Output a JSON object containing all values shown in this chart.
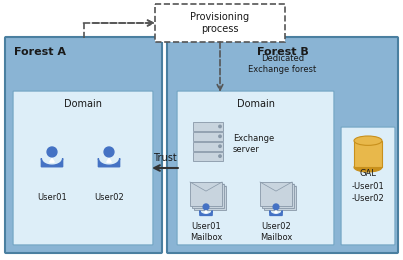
{
  "bg_color": "#ffffff",
  "outer_blue": "#8ab4d4",
  "inner_blue": "#c5dced",
  "light_inner": "#ddeef8",
  "gal_box_color": "#d0e4f4",
  "prov_box_color": "#ffffff",
  "border_dark": "#4a7fa0",
  "border_mid": "#7aaac8",
  "person_color": "#4472c4",
  "icon_gray_light": "#c8d4de",
  "icon_gray_dark": "#8898a8",
  "cylinder_gold": "#e8b84b",
  "cylinder_dark": "#c8901c",
  "text_dark": "#1a1a1a",
  "arrow_color": "#333333",
  "dash_color": "#555555",
  "forest_a_label": "Forest A",
  "forest_b_label": "Forest B",
  "forest_b_sub": "Dedicated\nExchange forest",
  "domain_label": "Domain",
  "exchange_label": "Exchange\nserver",
  "user01_label": "User01",
  "user02_label": "User02",
  "user01_mb_label": "User01\nMailbox",
  "user02_mb_label": "User02\nMailbox",
  "gal_label": "GAL\n-User01\n-User02",
  "prov_label": "Provisioning\nprocess",
  "trust_label": "Trust"
}
